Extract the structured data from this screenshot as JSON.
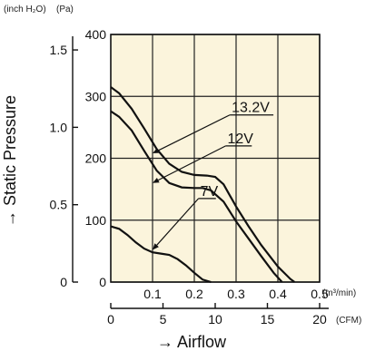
{
  "chart_data": {
    "type": "line",
    "title": "",
    "xlabel": "→ Airflow",
    "ylabel": "→ Static Pressure",
    "x_primary_unit": "(m³/min)",
    "x_secondary_unit": "(CFM)",
    "y_primary_unit": "(Pa)",
    "y_secondary_unit": "(inch H₂O)",
    "xlim": [
      0,
      0.5
    ],
    "ylim": [
      0,
      400
    ],
    "x_ticks": [
      {
        "value": 0.1,
        "label": "0.1"
      },
      {
        "value": 0.2,
        "label": "0.2"
      },
      {
        "value": 0.3,
        "label": "0.3"
      },
      {
        "value": 0.4,
        "label": "0.4"
      },
      {
        "value": 0.5,
        "label": "0.5"
      }
    ],
    "x_secondary_ticks": [
      {
        "value": 0,
        "label": "0"
      },
      {
        "value": 5,
        "label": "5"
      },
      {
        "value": 10,
        "label": "10"
      },
      {
        "value": 15,
        "label": "15"
      },
      {
        "value": 20,
        "label": "20"
      }
    ],
    "x_secondary_range": [
      0,
      22
    ],
    "y_ticks": [
      {
        "value": 0,
        "label": "0"
      },
      {
        "value": 100,
        "label": "100"
      },
      {
        "value": 200,
        "label": "200"
      },
      {
        "value": 300,
        "label": "300"
      },
      {
        "value": 400,
        "label": "400"
      }
    ],
    "y_secondary_ticks": [
      {
        "value": 0,
        "label": "0"
      },
      {
        "value": 0.5,
        "label": "0.5"
      },
      {
        "value": 1.0,
        "label": "1.0"
      },
      {
        "value": 1.5,
        "label": "1.5"
      }
    ],
    "y_secondary_range": [
      0,
      1.6
    ],
    "grid": true,
    "background": "#fbf4dc",
    "series": [
      {
        "name": "13.2V",
        "x": [
          0.0,
          0.02,
          0.05,
          0.08,
          0.11,
          0.14,
          0.17,
          0.2,
          0.23,
          0.25,
          0.27,
          0.3,
          0.33,
          0.36,
          0.4,
          0.43,
          0.44
        ],
        "y": [
          315,
          305,
          280,
          248,
          215,
          191,
          178,
          173,
          172,
          170,
          158,
          122,
          90,
          60,
          25,
          5,
          0
        ]
      },
      {
        "name": "12V",
        "x": [
          0.0,
          0.02,
          0.05,
          0.08,
          0.11,
          0.14,
          0.17,
          0.2,
          0.22,
          0.24,
          0.27,
          0.3,
          0.33,
          0.36,
          0.39,
          0.41
        ],
        "y": [
          276,
          267,
          245,
          212,
          180,
          160,
          153,
          152,
          152,
          148,
          130,
          98,
          70,
          42,
          15,
          0
        ]
      },
      {
        "name": "7V",
        "x": [
          0.0,
          0.02,
          0.04,
          0.06,
          0.08,
          0.1,
          0.12,
          0.14,
          0.16,
          0.18,
          0.2,
          0.22,
          0.24
        ],
        "y": [
          90,
          86,
          76,
          64,
          54,
          48,
          46,
          44,
          37,
          27,
          15,
          4,
          0
        ]
      }
    ],
    "annotations": [
      {
        "label": "13.2V",
        "tip": [
          0.1,
          208
        ],
        "anchor": [
          0.285,
          270
        ]
      },
      {
        "label": "12V",
        "tip": [
          0.1,
          160
        ],
        "anchor": [
          0.275,
          220
        ]
      },
      {
        "label": "7V",
        "tip": [
          0.1,
          52
        ],
        "anchor": [
          0.21,
          135
        ]
      }
    ]
  }
}
